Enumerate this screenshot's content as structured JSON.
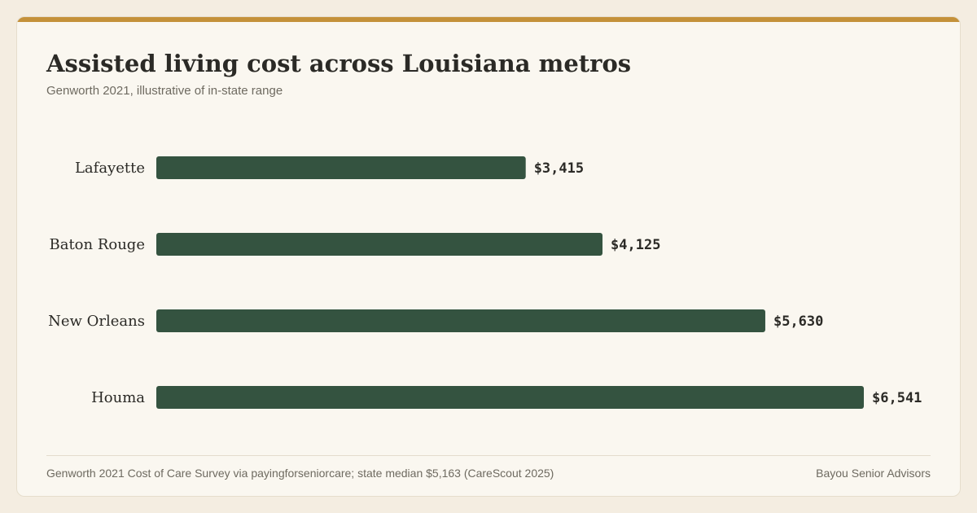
{
  "colors": {
    "accent": "#c4913a",
    "bar": "#345340"
  },
  "footer": {
    "source": "Genworth 2021 Cost of Care Survey via payingforseniorcare; state median $5,163 (CareScout 2025)",
    "brand": "Bayou Senior Advisors"
  },
  "chart_data": {
    "type": "bar",
    "orientation": "horizontal",
    "title": "Assisted living cost across Louisiana metros",
    "subtitle": "Genworth 2021, illustrative of in-state range",
    "categories": [
      "Lafayette",
      "Baton Rouge",
      "New Orleans",
      "Houma"
    ],
    "values": [
      3415,
      4125,
      5630,
      6541
    ],
    "value_labels": [
      "$3,415",
      "$4,125",
      "$5,630",
      "$6,541"
    ],
    "xlim": [
      0,
      6541
    ],
    "grid": false,
    "legend": "none"
  }
}
